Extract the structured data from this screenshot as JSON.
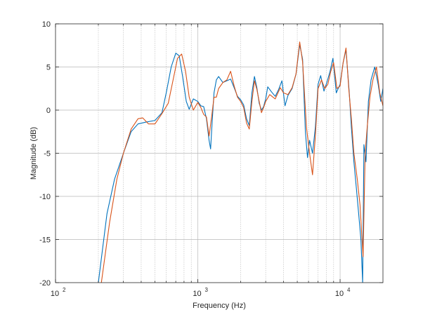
{
  "chart_data": {
    "type": "line",
    "title": "",
    "xlabel": "Frequency (Hz)",
    "ylabel": "Magnitude (dB)",
    "xscale": "log",
    "xlim": [
      100,
      20000
    ],
    "ylim": [
      -20,
      10
    ],
    "grid": true,
    "minor_grid_x": true,
    "x_ticks": [
      {
        "value": 100,
        "base": "10",
        "exp": "2"
      },
      {
        "value": 1000,
        "base": "10",
        "exp": "3"
      },
      {
        "value": 10000,
        "base": "10",
        "exp": "4"
      }
    ],
    "y_ticks": [
      {
        "value": 10,
        "label": "10"
      },
      {
        "value": 5,
        "label": "5"
      },
      {
        "value": 0,
        "label": "0"
      },
      {
        "value": -5,
        "label": "-5"
      },
      {
        "value": -10,
        "label": "-10"
      },
      {
        "value": -15,
        "label": "-15"
      },
      {
        "value": -20,
        "label": "-20"
      }
    ],
    "series": [
      {
        "color": "#0072bd",
        "points": [
          [
            200,
            -20
          ],
          [
            230,
            -12
          ],
          [
            260,
            -8
          ],
          [
            300,
            -5
          ],
          [
            340,
            -2.5
          ],
          [
            380,
            -1.6
          ],
          [
            430,
            -1.4
          ],
          [
            500,
            -1.2
          ],
          [
            560,
            -0.3
          ],
          [
            600,
            2
          ],
          [
            650,
            5
          ],
          [
            700,
            6.6
          ],
          [
            740,
            6.3
          ],
          [
            780,
            4
          ],
          [
            830,
            1
          ],
          [
            870,
            0.1
          ],
          [
            930,
            1.3
          ],
          [
            1000,
            1.0
          ],
          [
            1050,
            0.5
          ],
          [
            1100,
            0.4
          ],
          [
            1150,
            -1.0
          ],
          [
            1200,
            -3.5
          ],
          [
            1230,
            -4.5
          ],
          [
            1260,
            -1.5
          ],
          [
            1300,
            2
          ],
          [
            1350,
            3.5
          ],
          [
            1400,
            3.9
          ],
          [
            1500,
            3.2
          ],
          [
            1600,
            3.4
          ],
          [
            1700,
            3.6
          ],
          [
            1800,
            2.6
          ],
          [
            1900,
            1.6
          ],
          [
            2000,
            1.2
          ],
          [
            2100,
            0.6
          ],
          [
            2200,
            -1.0
          ],
          [
            2300,
            -1.8
          ],
          [
            2400,
            2
          ],
          [
            2500,
            3.9
          ],
          [
            2600,
            2.6
          ],
          [
            2700,
            0.8
          ],
          [
            2800,
            0
          ],
          [
            2900,
            0.4
          ],
          [
            3000,
            1.3
          ],
          [
            3100,
            2.7
          ],
          [
            3300,
            2.1
          ],
          [
            3500,
            1.6
          ],
          [
            3700,
            2.4
          ],
          [
            3900,
            3.4
          ],
          [
            4100,
            0.5
          ],
          [
            4300,
            1.7
          ],
          [
            4600,
            2.5
          ],
          [
            4900,
            4.2
          ],
          [
            5200,
            7.6
          ],
          [
            5450,
            5.9
          ],
          [
            5700,
            -2.5
          ],
          [
            5900,
            -5.5
          ],
          [
            6100,
            -3.5
          ],
          [
            6400,
            -5
          ],
          [
            6700,
            -2
          ],
          [
            7000,
            3
          ],
          [
            7300,
            4
          ],
          [
            7700,
            2.2
          ],
          [
            8100,
            3.3
          ],
          [
            8500,
            4.5
          ],
          [
            8900,
            6
          ],
          [
            9400,
            2
          ],
          [
            10000,
            3
          ],
          [
            10500,
            5.5
          ],
          [
            11000,
            7
          ],
          [
            11600,
            2
          ],
          [
            12000,
            -2
          ],
          [
            12500,
            -6
          ],
          [
            13000,
            -9
          ],
          [
            13500,
            -12
          ],
          [
            14000,
            -15
          ],
          [
            14400,
            -20
          ],
          [
            14700,
            -4
          ],
          [
            15200,
            -6
          ],
          [
            15800,
            1
          ],
          [
            16500,
            3.5
          ],
          [
            17500,
            5
          ],
          [
            18500,
            3
          ],
          [
            19300,
            1
          ],
          [
            20000,
            2.5
          ]
        ]
      },
      {
        "color": "#d95319",
        "points": [
          [
            210,
            -20
          ],
          [
            240,
            -13
          ],
          [
            270,
            -8
          ],
          [
            300,
            -5
          ],
          [
            340,
            -2.2
          ],
          [
            380,
            -1.0
          ],
          [
            410,
            -0.9
          ],
          [
            450,
            -1.6
          ],
          [
            500,
            -1.6
          ],
          [
            560,
            -0.4
          ],
          [
            620,
            0.8
          ],
          [
            680,
            4
          ],
          [
            720,
            6.0
          ],
          [
            770,
            6.5
          ],
          [
            820,
            4.5
          ],
          [
            870,
            1.5
          ],
          [
            930,
            0
          ],
          [
            1000,
            0.9
          ],
          [
            1050,
            0.3
          ],
          [
            1100,
            -0.5
          ],
          [
            1150,
            -0.8
          ],
          [
            1200,
            -3.0
          ],
          [
            1250,
            -0.8
          ],
          [
            1300,
            1.5
          ],
          [
            1350,
            1.5
          ],
          [
            1400,
            2.5
          ],
          [
            1500,
            3.2
          ],
          [
            1600,
            3.5
          ],
          [
            1700,
            4.5
          ],
          [
            1800,
            2.8
          ],
          [
            1900,
            1.5
          ],
          [
            2000,
            1.0
          ],
          [
            2100,
            0.3
          ],
          [
            2200,
            -1.5
          ],
          [
            2300,
            -2.2
          ],
          [
            2400,
            1.0
          ],
          [
            2500,
            3.4
          ],
          [
            2600,
            2.4
          ],
          [
            2700,
            1.0
          ],
          [
            2800,
            -0.3
          ],
          [
            2900,
            0.3
          ],
          [
            3000,
            1.0
          ],
          [
            3200,
            1.8
          ],
          [
            3500,
            1.3
          ],
          [
            3800,
            2.6
          ],
          [
            4000,
            2.0
          ],
          [
            4300,
            1.8
          ],
          [
            4600,
            2.6
          ],
          [
            4900,
            4.2
          ],
          [
            5200,
            7.9
          ],
          [
            5450,
            5.6
          ],
          [
            5800,
            -2
          ],
          [
            6100,
            -5
          ],
          [
            6400,
            -7.5
          ],
          [
            6700,
            -3
          ],
          [
            7000,
            2.5
          ],
          [
            7400,
            3.5
          ],
          [
            7800,
            2.5
          ],
          [
            8200,
            3
          ],
          [
            8600,
            4.5
          ],
          [
            9000,
            5.5
          ],
          [
            9500,
            2.5
          ],
          [
            10000,
            2.8
          ],
          [
            10500,
            5.5
          ],
          [
            11000,
            7.2
          ],
          [
            11500,
            2.5
          ],
          [
            12000,
            -1
          ],
          [
            12500,
            -5
          ],
          [
            13200,
            -8
          ],
          [
            13800,
            -11
          ],
          [
            14500,
            -17
          ],
          [
            15000,
            -5
          ],
          [
            15500,
            -2
          ],
          [
            16200,
            1.5
          ],
          [
            17000,
            3.5
          ],
          [
            18000,
            5
          ],
          [
            19000,
            2
          ],
          [
            20000,
            0.5
          ]
        ]
      }
    ]
  }
}
